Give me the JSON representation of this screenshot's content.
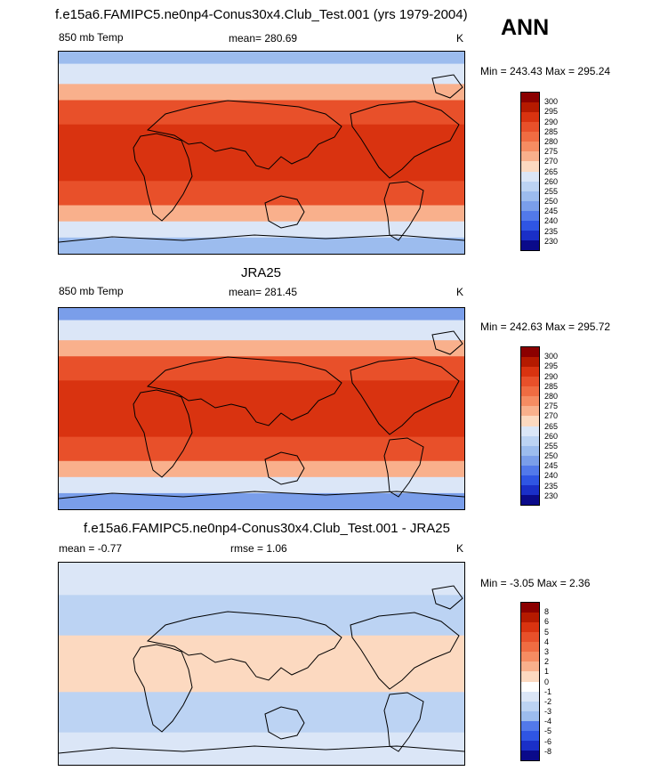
{
  "header": {
    "title": "f.e15a6.FAMIPC5.ne0np4-Conus30x4.Club_Test.001 (yrs 1979-2004)",
    "season": "ANN"
  },
  "panels": [
    {
      "left_label": "850 mb Temp",
      "center_label": "mean= 280.69",
      "units": "K",
      "minmax": "Min = 243.43 Max = 295.24",
      "levels": [
        "300",
        "295",
        "290",
        "285",
        "280",
        "275",
        "270",
        "265",
        "260",
        "255",
        "250",
        "245",
        "240",
        "235",
        "230"
      ],
      "colors": [
        "#8b0000",
        "#b51a00",
        "#d93310",
        "#e8502a",
        "#f06c42",
        "#f68c62",
        "#f9b08c",
        "#fcd9c0",
        "#dbe6f7",
        "#bcd3f3",
        "#9cbcee",
        "#7a9eea",
        "#5279ea",
        "#2f55e3",
        "#1a2fc8",
        "#0a0a8a"
      ],
      "map_colors": {
        "polar": "#9cbcee",
        "midlat": "#dbe6f7",
        "subtrop": "#f9b08c",
        "tropics": "#e8502a",
        "warmpool": "#d93310"
      }
    },
    {
      "title": "JRA25",
      "left_label": "850 mb Temp",
      "center_label": "mean= 281.45",
      "units": "K",
      "minmax": "Min = 242.63 Max = 295.72",
      "levels": [
        "300",
        "295",
        "290",
        "285",
        "280",
        "275",
        "270",
        "265",
        "260",
        "255",
        "250",
        "245",
        "240",
        "235",
        "230"
      ],
      "colors": [
        "#8b0000",
        "#b51a00",
        "#d93310",
        "#e8502a",
        "#f06c42",
        "#f68c62",
        "#f9b08c",
        "#fcd9c0",
        "#dbe6f7",
        "#bcd3f3",
        "#9cbcee",
        "#7a9eea",
        "#5279ea",
        "#2f55e3",
        "#1a2fc8",
        "#0a0a8a"
      ],
      "map_colors": {
        "polar": "#7a9eea",
        "midlat": "#dbe6f7",
        "subtrop": "#f9b08c",
        "tropics": "#e8502a",
        "warmpool": "#d93310"
      }
    },
    {
      "title": "f.e15a6.FAMIPC5.ne0np4-Conus30x4.Club_Test.001 - JRA25",
      "left_label": "mean =  -0.77",
      "center_label": "rmse =   1.06",
      "units": "K",
      "minmax": "Min =  -3.05 Max =   2.36",
      "levels": [
        "8",
        "6",
        "5",
        "4",
        "3",
        "2",
        "1",
        "0",
        "-1",
        "-2",
        "-3",
        "-4",
        "-5",
        "-6",
        "-8"
      ],
      "colors": [
        "#8b0000",
        "#b51a00",
        "#d93310",
        "#e8502a",
        "#f06c42",
        "#f68c62",
        "#f9b08c",
        "#fcd9c0",
        "#ffffff",
        "#dbe6f7",
        "#bcd3f3",
        "#9cbcee",
        "#5279ea",
        "#2f55e3",
        "#1a2fc8",
        "#0a0a8a"
      ],
      "map_colors": {
        "polar": "#dbe6f7",
        "midlat": "#dbe6f7",
        "subtrop": "#bcd3f3",
        "tropics": "#bcd3f3",
        "warmpool": "#fcd9c0"
      }
    }
  ]
}
